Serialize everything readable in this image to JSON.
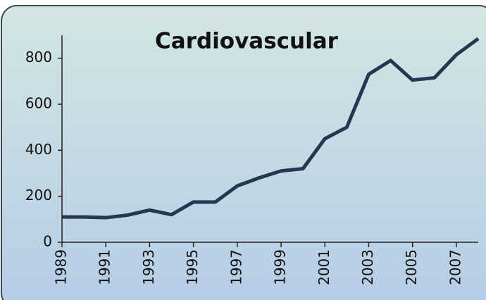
{
  "chart_data": {
    "type": "line",
    "title": "Cardiovascular",
    "x": [
      1989,
      1990,
      1991,
      1992,
      1993,
      1994,
      1995,
      1996,
      1997,
      1998,
      1999,
      2000,
      2001,
      2002,
      2003,
      2004,
      2005,
      2006,
      2007,
      2008
    ],
    "series": [
      {
        "name": "Cardiovascular",
        "color": "#243650",
        "values": [
          110,
          110,
          107,
          118,
          140,
          120,
          175,
          175,
          245,
          280,
          310,
          320,
          450,
          500,
          730,
          790,
          705,
          715,
          815,
          885
        ]
      }
    ],
    "xlim": [
      1989,
      2008
    ],
    "xticks": [
      1989,
      1991,
      1993,
      1995,
      1997,
      1999,
      2001,
      2003,
      2005,
      2007
    ],
    "ylim": [
      0,
      900
    ],
    "yticks": [
      0,
      200,
      400,
      600,
      800
    ]
  }
}
